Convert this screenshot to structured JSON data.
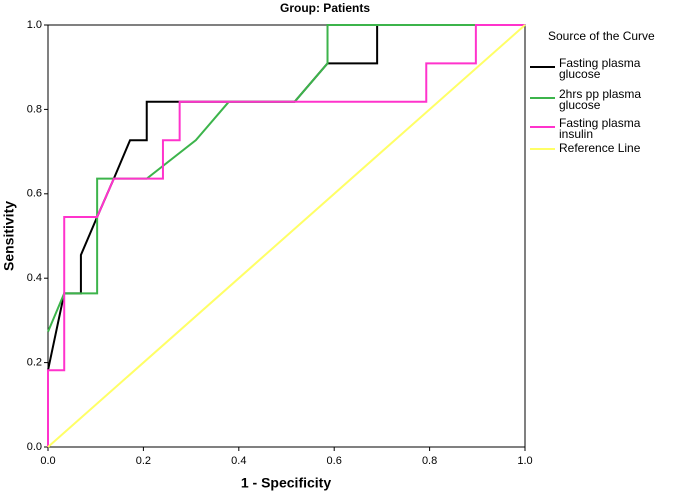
{
  "chart_data": {
    "type": "line",
    "title": "Group: Patients",
    "xlabel": "1 - Specificity",
    "ylabel": "Sensitivity",
    "legend_title": "Source of the Curve",
    "legend": "right",
    "xlim": [
      0,
      1
    ],
    "ylim": [
      0,
      1
    ],
    "xticks": [
      {
        "value": 0,
        "label": "0.0"
      },
      0.2,
      0.4,
      0.6,
      0.8,
      {
        "value": 1,
        "label": "1.0"
      }
    ],
    "yticks": [
      {
        "value": 0,
        "label": "0.0"
      },
      0.2,
      0.4,
      0.6,
      0.8,
      {
        "value": 1,
        "label": "1.0"
      }
    ],
    "series": [
      {
        "name": "Fasting plasma glucose",
        "color": "#000000",
        "x": [
          0,
          0,
          0.034,
          0.069,
          0.069,
          0.103,
          0.138,
          0.172,
          0.207,
          0.207,
          0.276,
          0.517,
          0.586,
          0.69,
          0.69,
          1
        ],
        "values": [
          0,
          0.182,
          0.364,
          0.364,
          0.455,
          0.545,
          0.636,
          0.727,
          0.727,
          0.818,
          0.818,
          0.818,
          0.909,
          0.909,
          1,
          1
        ]
      },
      {
        "name": "2hrs pp plasma glucose",
        "color": "#3cb44b",
        "x": [
          0,
          0.034,
          0.103,
          0.103,
          0.207,
          0.31,
          0.379,
          0.517,
          0.586,
          0.586,
          1
        ],
        "values": [
          0.273,
          0.364,
          0.364,
          0.636,
          0.636,
          0.727,
          0.818,
          0.818,
          0.909,
          1,
          1
        ]
      },
      {
        "name": "Fasting plasma insulin",
        "color": "#ff33cc",
        "x": [
          0,
          0,
          0.034,
          0.034,
          0.103,
          0.138,
          0.241,
          0.241,
          0.276,
          0.276,
          0.793,
          0.793,
          0.897,
          0.897,
          1
        ],
        "values": [
          0,
          0.182,
          0.182,
          0.545,
          0.545,
          0.636,
          0.636,
          0.727,
          0.727,
          0.818,
          0.818,
          0.909,
          0.909,
          1,
          1
        ]
      },
      {
        "name": "Reference Line",
        "color": "#ffff66",
        "x": [
          0,
          1
        ],
        "values": [
          0,
          1
        ]
      }
    ]
  }
}
